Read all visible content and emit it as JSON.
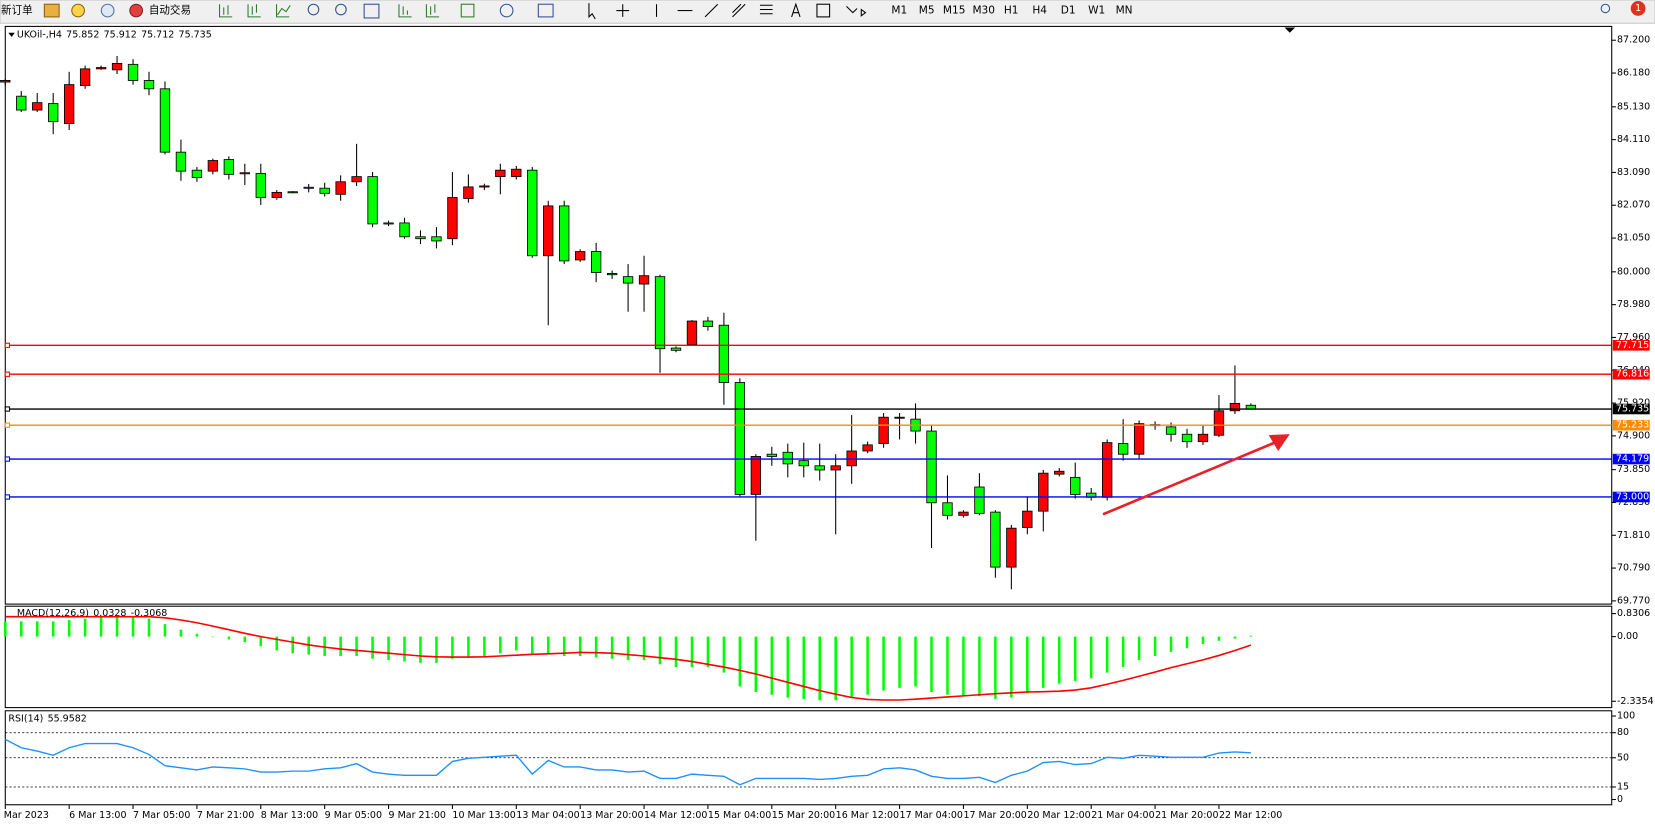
{
  "toolbar": {
    "new_order": "新订单",
    "auto_trading": "自动交易",
    "timeframes": [
      "M1",
      "M5",
      "M15",
      "M30",
      "H1",
      "H4",
      "D1",
      "W1",
      "MN"
    ],
    "notifications": 1
  },
  "chart_data": [
    {
      "type": "candlestick",
      "title": "UKOil-,H4",
      "up_color": "#ff0000",
      "down_color": "#00ff00",
      "categories": [
        "3 Mar 2023",
        null,
        null,
        null,
        "6 Mar 13:00",
        null,
        null,
        null,
        "7 Mar 05:00",
        null,
        null,
        null,
        "7 Mar 21:00",
        null,
        null,
        null,
        "8 Mar 13:00",
        null,
        null,
        null,
        "9 Mar 05:00",
        null,
        null,
        null,
        "9 Mar 21:00",
        null,
        null,
        null,
        "10 Mar 13:00",
        null,
        null,
        null,
        "13 Mar 04:00",
        null,
        null,
        null,
        "13 Mar 20:00",
        null,
        null,
        null,
        "14 Mar 12:00",
        null,
        null,
        null,
        "15 Mar 04:00",
        null,
        null,
        null,
        "15 Mar 20:00",
        null,
        null,
        null,
        "16 Mar 12:00",
        null,
        null,
        null,
        "17 Mar 04:00",
        null,
        null,
        null,
        "17 Mar 20:00",
        null,
        null,
        null,
        "20 Mar 12:00",
        null,
        null,
        null,
        "21 Mar 04:00",
        null,
        null,
        null,
        "21 Mar 20:00",
        null,
        null,
        null,
        "22 Mar 12:00",
        null,
        null
      ],
      "open": [
        85.9,
        85.46,
        85.03,
        85.23,
        84.61,
        85.79,
        86.31,
        86.28,
        86.45,
        85.95,
        85.69,
        83.72,
        83.16,
        83.13,
        83.49,
        83.08,
        83.06,
        82.31,
        82.49,
        82.63,
        82.6,
        82.41,
        82.8,
        82.96,
        81.52,
        81.52,
        81.09,
        81.09,
        81.03,
        82.28,
        82.64,
        82.96,
        82.96,
        83.16,
        80.5,
        82.05,
        80.37,
        80.63,
        79.95,
        79.85,
        79.62,
        79.85,
        77.63,
        77.74,
        78.47,
        78.34,
        76.56,
        73.08,
        74.33,
        74.39,
        74.13,
        73.97,
        73.84,
        73.97,
        74.43,
        74.66,
        75.45,
        75.42,
        75.05,
        72.82,
        72.43,
        73.31,
        72.53,
        70.82,
        72.05,
        72.56,
        73.71,
        73.61,
        73.12,
        72.99,
        74.66,
        74.33,
        75.22,
        75.18,
        74.95,
        74.72,
        74.92,
        75.68,
        75.852
      ],
      "high": [
        86.0,
        85.62,
        85.56,
        85.56,
        86.22,
        86.41,
        86.41,
        86.71,
        86.61,
        86.22,
        85.92,
        84.11,
        83.26,
        83.52,
        83.59,
        83.36,
        83.36,
        82.54,
        82.51,
        82.73,
        82.77,
        83.0,
        83.98,
        83.1,
        81.59,
        81.68,
        81.29,
        81.39,
        83.1,
        83.03,
        82.74,
        83.36,
        83.29,
        83.26,
        82.21,
        82.21,
        80.7,
        80.9,
        80.04,
        80.24,
        80.5,
        79.91,
        77.68,
        78.5,
        78.6,
        78.73,
        76.69,
        74.33,
        74.56,
        74.66,
        74.69,
        74.66,
        74.33,
        75.55,
        74.72,
        75.61,
        75.61,
        75.91,
        75.22,
        73.67,
        72.59,
        73.74,
        72.59,
        72.13,
        73.02,
        73.84,
        73.9,
        74.07,
        73.28,
        74.79,
        75.42,
        75.38,
        75.35,
        75.32,
        75.12,
        75.22,
        76.17,
        77.09,
        75.912
      ],
      "low": [
        85.8,
        84.97,
        84.97,
        84.28,
        84.41,
        85.69,
        86.28,
        86.15,
        85.82,
        85.49,
        83.65,
        82.83,
        82.8,
        83.03,
        82.87,
        82.7,
        82.08,
        82.24,
        82.44,
        82.47,
        82.34,
        82.21,
        82.67,
        81.39,
        81.42,
        81.03,
        80.86,
        80.73,
        80.83,
        82.15,
        82.54,
        82.41,
        82.87,
        80.44,
        78.34,
        80.24,
        80.31,
        79.68,
        79.78,
        78.76,
        78.76,
        76.86,
        77.5,
        77.71,
        78.17,
        75.87,
        73.02,
        71.64,
        73.97,
        73.61,
        73.61,
        73.51,
        71.84,
        73.41,
        74.36,
        74.53,
        74.79,
        74.66,
        71.41,
        72.3,
        72.36,
        72.43,
        70.49,
        70.13,
        71.84,
        71.93,
        73.64,
        72.95,
        72.89,
        72.89,
        74.13,
        74.2,
        75.09,
        74.72,
        74.53,
        74.62,
        74.86,
        75.58,
        75.712
      ],
      "close": [
        85.95,
        85.03,
        85.26,
        84.67,
        85.82,
        86.31,
        86.35,
        86.48,
        85.95,
        85.69,
        83.72,
        83.13,
        82.93,
        83.46,
        83.03,
        83.06,
        82.31,
        82.47,
        82.47,
        82.6,
        82.44,
        82.8,
        82.96,
        81.49,
        81.49,
        81.09,
        81.03,
        80.96,
        82.31,
        82.64,
        82.67,
        83.16,
        83.19,
        80.5,
        82.05,
        80.34,
        80.63,
        79.98,
        79.91,
        79.65,
        79.88,
        77.61,
        77.56,
        78.47,
        78.3,
        76.56,
        73.08,
        74.26,
        74.26,
        74.03,
        73.97,
        73.84,
        73.97,
        74.43,
        74.62,
        75.48,
        75.48,
        75.05,
        72.82,
        72.43,
        72.53,
        72.49,
        70.82,
        72.03,
        72.56,
        73.74,
        73.8,
        73.08,
        72.99,
        74.69,
        74.33,
        75.28,
        75.25,
        74.95,
        74.72,
        74.95,
        75.68,
        75.91,
        75.735
      ],
      "ylim": [
        69.67,
        87.63
      ],
      "yticks": [
        {
          "value": 87.2,
          "label": "87.200"
        },
        {
          "value": 86.18,
          "label": "86.180"
        },
        {
          "value": 85.13,
          "label": "85.130"
        },
        {
          "value": 84.11,
          "label": "84.110"
        },
        {
          "value": 83.09,
          "label": "83.090"
        },
        {
          "value": 82.07,
          "label": "82.070"
        },
        {
          "value": 81.05,
          "label": "81.050"
        },
        {
          "value": 80,
          "label": "80.000"
        },
        {
          "value": 78.98,
          "label": "78.980"
        },
        {
          "value": 77.96,
          "label": "77.960"
        },
        {
          "value": 76.94,
          "label": "76.940"
        },
        {
          "value": 75.92,
          "label": "75.920"
        },
        {
          "value": 74.9,
          "label": "74.900"
        },
        {
          "value": 73.85,
          "label": "73.850"
        },
        {
          "value": 72.83,
          "label": "72.830"
        },
        {
          "value": 71.81,
          "label": "71.810"
        },
        {
          "value": 70.79,
          "label": "70.790"
        },
        {
          "value": 69.77,
          "label": "69.770"
        }
      ],
      "levels": [
        {
          "value": 77.715,
          "color": "#ff0000"
        },
        {
          "value": 76.816,
          "color": "#ff0000"
        },
        {
          "value": 75.735,
          "color": "#000000"
        },
        {
          "value": 75.233,
          "color": "#ff8c00"
        },
        {
          "value": 74.179,
          "color": "#0000ff"
        },
        {
          "value": 73,
          "label": "73.000",
          "color": "#0000ff"
        }
      ],
      "grid": false
    },
    {
      "type": "macd",
      "title": "MACD(12,26,9)",
      "color": "#00ff00",
      "signal_color": "#ff0000",
      "values": [
        0.55,
        0.55,
        0.55,
        0.55,
        0.6,
        0.65,
        0.7,
        0.7,
        0.7,
        0.65,
        0.45,
        0.25,
        0.1,
        0.0,
        -0.1,
        -0.2,
        -0.35,
        -0.5,
        -0.6,
        -0.65,
        -0.7,
        -0.7,
        -0.7,
        -0.8,
        -0.85,
        -0.9,
        -0.95,
        -0.95,
        -0.8,
        -0.75,
        -0.7,
        -0.6,
        -0.5,
        -0.65,
        -0.6,
        -0.7,
        -0.7,
        -0.75,
        -0.8,
        -0.85,
        -0.85,
        -1.0,
        -1.1,
        -1.1,
        -1.1,
        -1.3,
        -1.8,
        -2.0,
        -2.1,
        -2.2,
        -2.25,
        -2.3,
        -2.3,
        -2.2,
        -2.1,
        -1.95,
        -1.85,
        -1.8,
        -2.0,
        -2.1,
        -2.15,
        -2.15,
        -2.25,
        -2.2,
        -2.05,
        -1.85,
        -1.7,
        -1.6,
        -1.5,
        -1.3,
        -1.1,
        -0.85,
        -0.7,
        -0.55,
        -0.42,
        -0.27,
        -0.15,
        -0.07,
        0.0328
      ],
      "signal": [
        0.72,
        0.72,
        0.72,
        0.72,
        0.72,
        0.72,
        0.72,
        0.72,
        0.72,
        0.72,
        0.68,
        0.6,
        0.5,
        0.38,
        0.25,
        0.12,
        0.0,
        -0.1,
        -0.2,
        -0.3,
        -0.38,
        -0.45,
        -0.5,
        -0.55,
        -0.6,
        -0.65,
        -0.7,
        -0.73,
        -0.74,
        -0.74,
        -0.73,
        -0.7,
        -0.67,
        -0.64,
        -0.62,
        -0.6,
        -0.57,
        -0.58,
        -0.6,
        -0.65,
        -0.7,
        -0.76,
        -0.82,
        -0.9,
        -1.0,
        -1.1,
        -1.22,
        -1.35,
        -1.5,
        -1.65,
        -1.8,
        -1.95,
        -2.08,
        -2.2,
        -2.27,
        -2.29,
        -2.29,
        -2.26,
        -2.22,
        -2.18,
        -2.14,
        -2.1,
        -2.06,
        -2.03,
        -2.0,
        -1.99,
        -1.97,
        -1.93,
        -1.85,
        -1.72,
        -1.58,
        -1.43,
        -1.28,
        -1.12,
        -0.98,
        -0.84,
        -0.68,
        -0.5,
        -0.3068
      ],
      "ylim": [
        -2.564,
        1.098
      ],
      "yticks": [
        0.8306,
        {
          "value": 0,
          "label": "0.00"
        },
        -2.3354
      ]
    },
    {
      "type": "line",
      "title": "RSI(14)",
      "color": "#1e90ff",
      "values": [
        72,
        62,
        58,
        53,
        62,
        67,
        67,
        67,
        62,
        54,
        40.5,
        38,
        35.4,
        39,
        38,
        36.7,
        32.9,
        32.9,
        34,
        34,
        36.7,
        38,
        43,
        32.9,
        30.4,
        29,
        29,
        29,
        45.6,
        49.4,
        50.6,
        51.9,
        53,
        30.4,
        46.8,
        39,
        39,
        35.4,
        35.4,
        32.9,
        34,
        25.3,
        25.3,
        30.4,
        29,
        27.8,
        17.7,
        25.3,
        25.3,
        25.3,
        25.3,
        24,
        25.3,
        27.8,
        29,
        36.7,
        38,
        35.4,
        27.8,
        25.3,
        25.3,
        26.6,
        20.3,
        29,
        34,
        44.3,
        45.6,
        41.8,
        43,
        50.6,
        49.4,
        53,
        51.9,
        50.6,
        50.6,
        50.6,
        55.7,
        57,
        55.9582
      ],
      "ylim": [
        -6.3,
        106.3
      ],
      "yticks": [
        100,
        80,
        50,
        15,
        0
      ],
      "levels": [
        80,
        50,
        15
      ]
    }
  ]
}
